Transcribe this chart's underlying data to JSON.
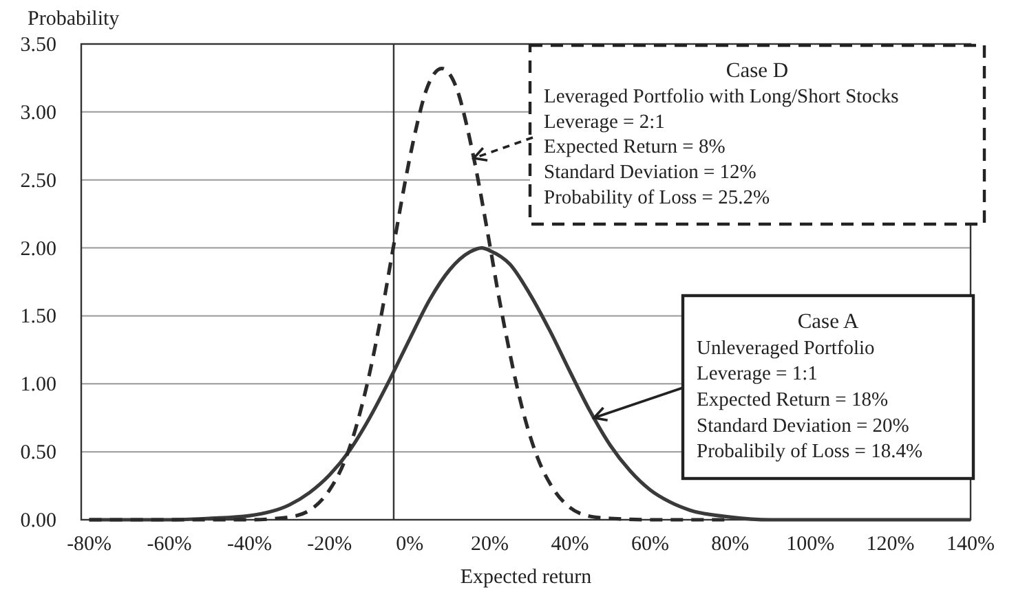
{
  "chart_data": {
    "type": "line",
    "xlabel": "Expected return",
    "ylabel": "Probability",
    "xlim": [
      -82,
      140
    ],
    "xticks": [
      {
        "value": -80,
        "label": "-80%"
      },
      {
        "value": -60,
        "label": "-60%"
      },
      {
        "value": -40,
        "label": "-40%"
      },
      {
        "value": -20,
        "label": "-20%"
      },
      {
        "value": 0,
        "label": "0%"
      },
      {
        "value": 20,
        "label": "20%"
      },
      {
        "value": 40,
        "label": "40%"
      },
      {
        "value": 60,
        "label": "60%"
      },
      {
        "value": 80,
        "label": "80%"
      },
      {
        "value": 100,
        "label": "100%"
      },
      {
        "value": 120,
        "label": "120%"
      },
      {
        "value": 140,
        "label": "140%"
      }
    ],
    "ylim": [
      0,
      3.5
    ],
    "yticks": [
      {
        "value": 0,
        "label": "0.00"
      },
      {
        "value": 0.5,
        "label": "0.50"
      },
      {
        "value": 1,
        "label": "1.00"
      },
      {
        "value": 1.5,
        "label": "1.50"
      },
      {
        "value": 2,
        "label": "2.00"
      },
      {
        "value": 2.5,
        "label": "2.50"
      },
      {
        "value": 3,
        "label": "3.00"
      },
      {
        "value": 3.5,
        "label": "3.50"
      }
    ],
    "grid": "y",
    "marker": "none",
    "ref_lines": [
      {
        "axis": "x",
        "value": -4,
        "color": "#333333"
      }
    ],
    "series": [
      {
        "color": "#3a3a3a",
        "line_style": "solid",
        "x": [
          -80,
          -60,
          -50,
          -40,
          -30,
          -25,
          -20,
          -15,
          -10,
          -5,
          0,
          5,
          10,
          15,
          18,
          20,
          25,
          30,
          35,
          40,
          45,
          50,
          55,
          60,
          65,
          70,
          80,
          90,
          100,
          120,
          140
        ],
        "values": [
          0,
          0,
          0.01,
          0.03,
          0.11,
          0.2,
          0.33,
          0.51,
          0.75,
          1.03,
          1.33,
          1.62,
          1.84,
          1.97,
          2.0,
          1.98,
          1.88,
          1.66,
          1.39,
          1.09,
          0.8,
          0.55,
          0.36,
          0.22,
          0.13,
          0.07,
          0.02,
          0,
          0,
          0,
          0
        ]
      },
      {
        "color": "#2a2a2a",
        "line_style": "dashed",
        "x": [
          -80,
          -50,
          -40,
          -30,
          -24,
          -20,
          -16,
          -10,
          -7,
          -4,
          0,
          2,
          4,
          8,
          12,
          14,
          16,
          20,
          22,
          24,
          28,
          30,
          32,
          36,
          40,
          46,
          50,
          60,
          80
        ],
        "values": [
          0,
          0,
          0,
          0.02,
          0.09,
          0.22,
          0.45,
          1.08,
          1.52,
          2.02,
          2.66,
          2.93,
          3.15,
          3.32,
          3.15,
          2.93,
          2.66,
          2.02,
          1.68,
          1.37,
          0.83,
          0.62,
          0.45,
          0.22,
          0.09,
          0.02,
          0.01,
          0,
          0
        ]
      }
    ],
    "annotations": [
      {
        "text": "Case D\nLeveraged Portfolio with Long/Short Stocks\nLeverage = 2:1\nExpected Return = 8%\nStandard Deviation = 12%\nProbability of Loss = 25.2%",
        "x": 16,
        "y": 2.66
      },
      {
        "text": "Case A\nUnleveraged Portfolio\nLeverage = 1:1\nExpected Return = 18%\nStandard Deviation = 20%\nProbalibily of Loss = 18.4%",
        "x": 46,
        "y": 0.75
      }
    ]
  }
}
